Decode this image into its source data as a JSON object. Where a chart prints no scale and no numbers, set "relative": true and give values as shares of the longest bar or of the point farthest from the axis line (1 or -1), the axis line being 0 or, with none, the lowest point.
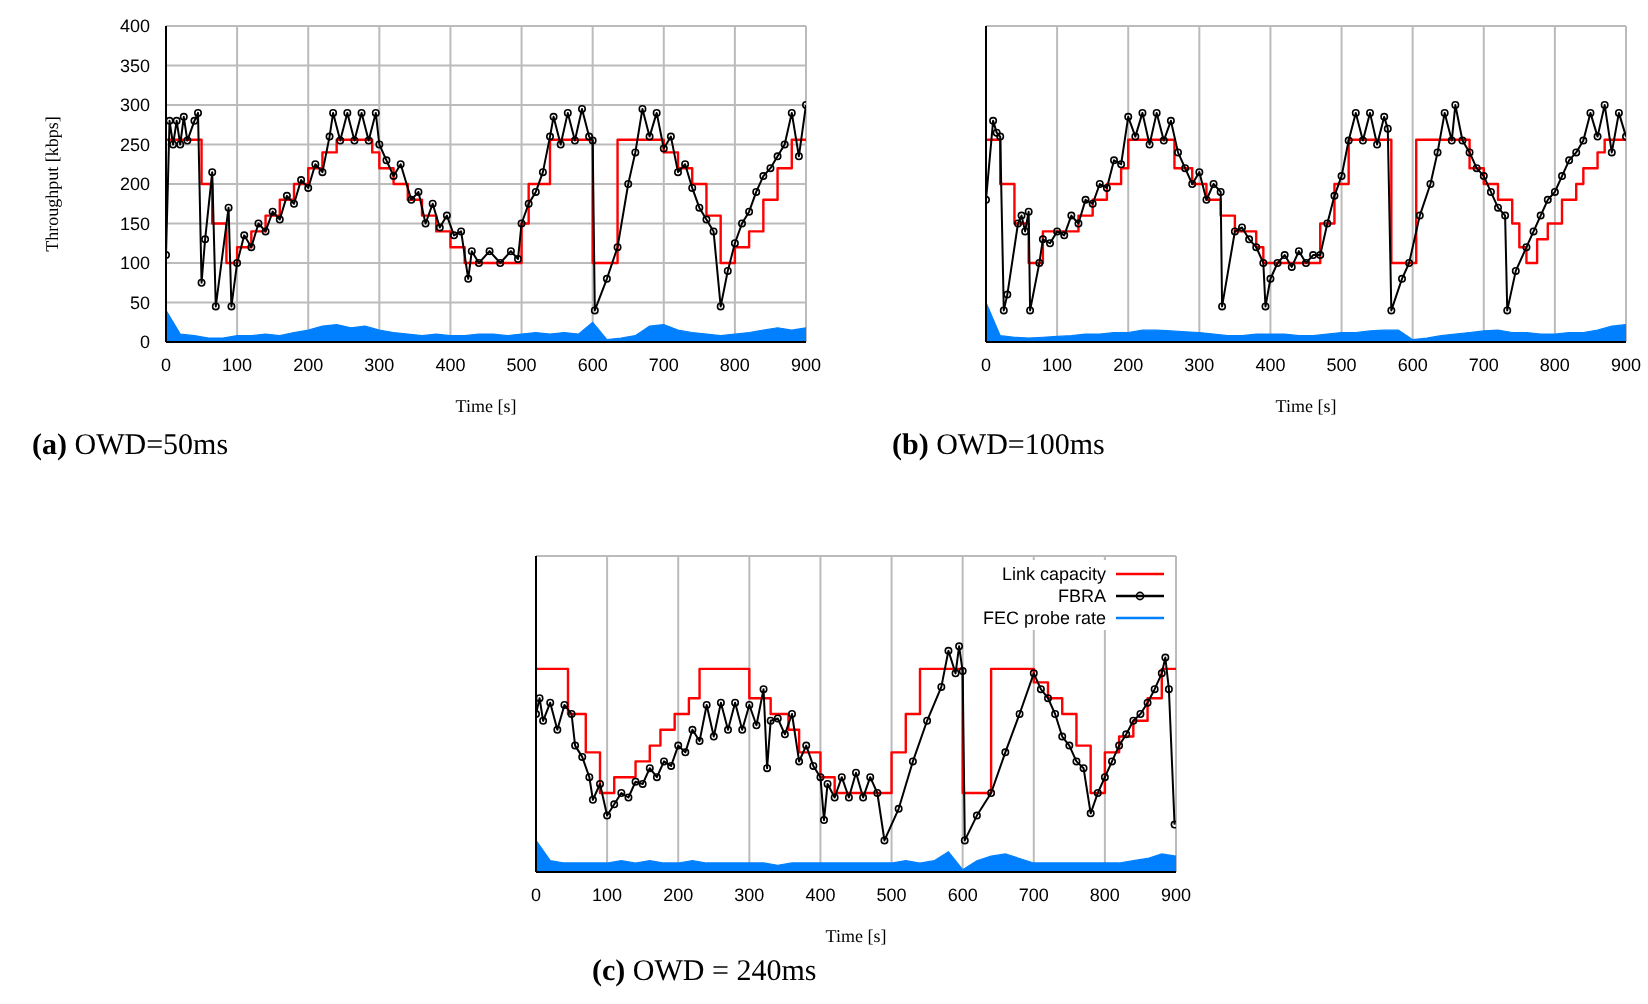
{
  "chart_data": [
    {
      "type": "line",
      "title": "(a) OWD=50ms",
      "xlabel": "Time [s]",
      "ylabel": "Throughput [kbps]",
      "xlim": [
        0,
        900
      ],
      "xticks": [
        0,
        100,
        200,
        300,
        400,
        500,
        600,
        700,
        800,
        900
      ],
      "ylim": [
        0,
        400
      ],
      "yticks": [
        0,
        50,
        100,
        150,
        200,
        250,
        300,
        350,
        400
      ],
      "grid": true,
      "legend": false,
      "series": [
        {
          "type": "area",
          "color": "#0080ff",
          "x": [
            0,
            20,
            40,
            60,
            80,
            100,
            120,
            140,
            160,
            180,
            200,
            220,
            240,
            260,
            280,
            300,
            320,
            340,
            360,
            380,
            400,
            420,
            440,
            460,
            480,
            500,
            520,
            540,
            560,
            580,
            600,
            620,
            640,
            660,
            680,
            700,
            720,
            740,
            760,
            780,
            800,
            820,
            840,
            860,
            880,
            900
          ],
          "values": [
            40,
            10,
            8,
            5,
            5,
            8,
            8,
            10,
            8,
            12,
            15,
            20,
            22,
            18,
            20,
            15,
            12,
            10,
            8,
            10,
            8,
            8,
            10,
            10,
            8,
            10,
            12,
            10,
            12,
            10,
            25,
            3,
            5,
            8,
            20,
            22,
            15,
            12,
            10,
            8,
            10,
            12,
            15,
            18,
            15,
            18
          ]
        },
        {
          "type": "step",
          "color": "#ff0000",
          "x": [
            0,
            50,
            65,
            85,
            100,
            120,
            140,
            160,
            180,
            200,
            220,
            240,
            290,
            300,
            320,
            340,
            360,
            380,
            400,
            420,
            500,
            510,
            540,
            600,
            635,
            700,
            720,
            740,
            760,
            780,
            800,
            820,
            840,
            860,
            880,
            900
          ],
          "values": [
            256,
            200,
            150,
            100,
            120,
            140,
            160,
            180,
            200,
            220,
            240,
            256,
            240,
            220,
            200,
            180,
            160,
            140,
            120,
            100,
            150,
            200,
            256,
            100,
            256,
            240,
            220,
            200,
            160,
            100,
            120,
            140,
            180,
            220,
            256,
            256
          ]
        },
        {
          "color": "#000000",
          "marker": "circle",
          "x": [
            0,
            5,
            10,
            15,
            20,
            25,
            30,
            40,
            45,
            50,
            55,
            65,
            70,
            88,
            92,
            100,
            110,
            120,
            130,
            140,
            150,
            160,
            170,
            180,
            190,
            200,
            210,
            220,
            230,
            235,
            245,
            255,
            265,
            275,
            285,
            295,
            300,
            310,
            320,
            330,
            345,
            355,
            365,
            375,
            385,
            395,
            405,
            415,
            425,
            430,
            440,
            455,
            470,
            485,
            495,
            500,
            510,
            520,
            530,
            540,
            545,
            555,
            565,
            575,
            585,
            595,
            600,
            603,
            620,
            635,
            650,
            660,
            670,
            680,
            690,
            700,
            710,
            720,
            730,
            740,
            750,
            760,
            770,
            780,
            790,
            800,
            810,
            820,
            830,
            840,
            850,
            860,
            870,
            880,
            890,
            900
          ],
          "values": [
            110,
            280,
            250,
            280,
            250,
            285,
            255,
            280,
            290,
            75,
            130,
            215,
            45,
            170,
            45,
            100,
            135,
            120,
            150,
            140,
            165,
            155,
            185,
            175,
            205,
            195,
            225,
            215,
            260,
            290,
            255,
            290,
            255,
            290,
            255,
            290,
            250,
            230,
            210,
            225,
            180,
            190,
            150,
            175,
            145,
            160,
            135,
            140,
            80,
            115,
            100,
            115,
            100,
            115,
            105,
            150,
            175,
            190,
            215,
            260,
            285,
            250,
            290,
            255,
            295,
            260,
            255,
            40,
            80,
            120,
            200,
            240,
            295,
            260,
            290,
            245,
            260,
            215,
            225,
            195,
            170,
            155,
            140,
            45,
            90,
            125,
            150,
            165,
            190,
            210,
            220,
            235,
            250,
            290,
            235,
            300
          ]
        }
      ]
    },
    {
      "type": "line",
      "title": "(b) OWD=100ms",
      "xlabel": "Time [s]",
      "xlim": [
        0,
        900
      ],
      "xticks": [
        0,
        100,
        200,
        300,
        400,
        500,
        600,
        700,
        800,
        900
      ],
      "ylim": [
        0,
        400
      ],
      "yticks": [
        0,
        50,
        100,
        150,
        200,
        250,
        300,
        350,
        400
      ],
      "tick_labels": "x",
      "grid": true,
      "legend": false,
      "series": [
        {
          "type": "area",
          "color": "#0080ff",
          "x": [
            0,
            20,
            40,
            60,
            80,
            100,
            120,
            140,
            160,
            180,
            200,
            220,
            240,
            260,
            280,
            300,
            320,
            340,
            360,
            380,
            400,
            420,
            440,
            460,
            480,
            500,
            520,
            540,
            560,
            580,
            600,
            620,
            640,
            660,
            680,
            700,
            720,
            740,
            760,
            780,
            800,
            820,
            840,
            860,
            880,
            900
          ],
          "values": [
            50,
            8,
            6,
            5,
            6,
            7,
            8,
            10,
            10,
            12,
            12,
            15,
            15,
            14,
            13,
            12,
            10,
            8,
            8,
            10,
            10,
            10,
            8,
            8,
            10,
            12,
            12,
            14,
            15,
            15,
            3,
            5,
            8,
            10,
            12,
            14,
            15,
            12,
            12,
            10,
            10,
            12,
            12,
            15,
            20,
            22
          ]
        },
        {
          "type": "step",
          "color": "#ff0000",
          "x": [
            0,
            20,
            40,
            60,
            80,
            130,
            150,
            170,
            190,
            200,
            265,
            290,
            310,
            330,
            350,
            380,
            390,
            470,
            490,
            510,
            570,
            605,
            670,
            680,
            700,
            720,
            740,
            750,
            760,
            775,
            790,
            810,
            830,
            840,
            860,
            870,
            900
          ],
          "values": [
            256,
            200,
            150,
            100,
            140,
            160,
            180,
            200,
            220,
            256,
            220,
            200,
            180,
            160,
            140,
            120,
            100,
            150,
            200,
            256,
            100,
            256,
            256,
            220,
            200,
            180,
            150,
            120,
            100,
            130,
            150,
            180,
            200,
            220,
            240,
            256,
            256
          ]
        },
        {
          "color": "#000000",
          "marker": "circle",
          "x": [
            0,
            10,
            15,
            20,
            25,
            30,
            45,
            50,
            55,
            60,
            62,
            75,
            80,
            90,
            100,
            110,
            120,
            130,
            140,
            150,
            160,
            170,
            180,
            190,
            200,
            210,
            220,
            230,
            240,
            250,
            260,
            270,
            280,
            290,
            300,
            310,
            320,
            330,
            332,
            350,
            360,
            370,
            380,
            390,
            393,
            400,
            410,
            420,
            430,
            440,
            450,
            460,
            470,
            480,
            490,
            500,
            510,
            520,
            530,
            540,
            550,
            560,
            565,
            570,
            585,
            595,
            610,
            625,
            635,
            645,
            655,
            660,
            670,
            680,
            690,
            700,
            710,
            720,
            730,
            733,
            745,
            760,
            770,
            780,
            790,
            800,
            810,
            820,
            830,
            840,
            850,
            860,
            870,
            880,
            890,
            900
          ],
          "values": [
            180,
            280,
            265,
            260,
            40,
            60,
            150,
            160,
            140,
            165,
            40,
            100,
            130,
            125,
            140,
            135,
            160,
            150,
            180,
            175,
            200,
            195,
            230,
            225,
            285,
            260,
            290,
            250,
            290,
            255,
            280,
            240,
            220,
            200,
            215,
            180,
            200,
            190,
            45,
            140,
            145,
            130,
            120,
            100,
            45,
            80,
            100,
            110,
            95,
            115,
            100,
            110,
            110,
            150,
            185,
            210,
            255,
            290,
            255,
            290,
            250,
            285,
            270,
            40,
            80,
            100,
            160,
            200,
            240,
            290,
            255,
            300,
            255,
            240,
            220,
            210,
            190,
            170,
            160,
            40,
            90,
            120,
            140,
            160,
            180,
            190,
            210,
            230,
            240,
            255,
            290,
            260,
            300,
            240,
            290,
            260
          ]
        }
      ]
    },
    {
      "type": "line",
      "title": "(c) OWD = 240ms",
      "xlabel": "Time [s]",
      "xlim": [
        0,
        900
      ],
      "xticks": [
        0,
        100,
        200,
        300,
        400,
        500,
        600,
        700,
        800,
        900
      ],
      "relative": true,
      "grid": true,
      "legend": "top right",
      "series": [
        {
          "name": "Link capacity",
          "type": "step",
          "color": "#ff0000",
          "x": [
            0,
            45,
            70,
            90,
            110,
            140,
            160,
            175,
            195,
            215,
            230,
            300,
            330,
            355,
            370,
            400,
            420,
            500,
            520,
            540,
            600,
            640,
            700,
            720,
            740,
            760,
            780,
            800,
            820,
            840,
            860,
            880,
            900
          ],
          "values": [
            0.9,
            0.7,
            0.53,
            0.35,
            0.42,
            0.49,
            0.56,
            0.63,
            0.7,
            0.77,
            0.9,
            0.77,
            0.7,
            0.63,
            0.53,
            0.42,
            0.35,
            0.53,
            0.7,
            0.9,
            0.35,
            0.9,
            0.84,
            0.77,
            0.7,
            0.56,
            0.35,
            0.53,
            0.6,
            0.67,
            0.77,
            0.9,
            0.9
          ]
        },
        {
          "name": "FBRA",
          "color": "#000000",
          "marker": "circle",
          "x": [
            0,
            5,
            10,
            20,
            30,
            40,
            50,
            55,
            65,
            75,
            80,
            90,
            100,
            110,
            120,
            130,
            140,
            150,
            160,
            170,
            180,
            190,
            200,
            210,
            220,
            230,
            240,
            250,
            260,
            270,
            280,
            290,
            300,
            310,
            320,
            325,
            330,
            340,
            350,
            360,
            370,
            380,
            390,
            400,
            405,
            410,
            420,
            430,
            440,
            450,
            460,
            470,
            480,
            490,
            510,
            530,
            550,
            570,
            580,
            590,
            595,
            600,
            603,
            620,
            640,
            660,
            680,
            700,
            710,
            720,
            730,
            740,
            750,
            760,
            770,
            780,
            790,
            800,
            810,
            820,
            830,
            840,
            850,
            860,
            870,
            880,
            885,
            890,
            898
          ],
          "values": [
            0.7,
            0.77,
            0.67,
            0.75,
            0.63,
            0.74,
            0.7,
            0.56,
            0.51,
            0.42,
            0.32,
            0.39,
            0.25,
            0.3,
            0.35,
            0.33,
            0.4,
            0.39,
            0.46,
            0.42,
            0.49,
            0.47,
            0.56,
            0.53,
            0.63,
            0.58,
            0.74,
            0.6,
            0.75,
            0.63,
            0.75,
            0.63,
            0.74,
            0.65,
            0.81,
            0.46,
            0.67,
            0.68,
            0.61,
            0.7,
            0.49,
            0.56,
            0.47,
            0.42,
            0.23,
            0.39,
            0.33,
            0.42,
            0.33,
            0.44,
            0.33,
            0.42,
            0.35,
            0.14,
            0.28,
            0.49,
            0.67,
            0.82,
            0.98,
            0.88,
            1,
            0.89,
            0.14,
            0.25,
            0.35,
            0.53,
            0.7,
            0.88,
            0.81,
            0.77,
            0.7,
            0.6,
            0.56,
            0.49,
            0.46,
            0.26,
            0.35,
            0.42,
            0.49,
            0.56,
            0.61,
            0.67,
            0.7,
            0.75,
            0.81,
            0.88,
            0.95,
            0.81,
            0.21
          ]
        },
        {
          "name": "FEC probe rate",
          "type": "area",
          "color": "#0080ff",
          "x": [
            0,
            20,
            40,
            60,
            80,
            100,
            120,
            140,
            160,
            180,
            200,
            220,
            240,
            260,
            280,
            300,
            320,
            340,
            360,
            380,
            400,
            420,
            440,
            460,
            480,
            500,
            520,
            540,
            560,
            580,
            600,
            620,
            640,
            660,
            680,
            700,
            720,
            740,
            760,
            780,
            800,
            820,
            840,
            860,
            880,
            900
          ],
          "values": [
            0.14,
            0.05,
            0.04,
            0.04,
            0.04,
            0.04,
            0.05,
            0.04,
            0.05,
            0.04,
            0.04,
            0.05,
            0.04,
            0.04,
            0.04,
            0.04,
            0.04,
            0.03,
            0.04,
            0.04,
            0.04,
            0.04,
            0.04,
            0.04,
            0.04,
            0.04,
            0.05,
            0.04,
            0.05,
            0.09,
            0.01,
            0.05,
            0.07,
            0.08,
            0.06,
            0.04,
            0.04,
            0.04,
            0.04,
            0.04,
            0.04,
            0.04,
            0.05,
            0.06,
            0.08,
            0.07
          ]
        }
      ]
    }
  ]
}
